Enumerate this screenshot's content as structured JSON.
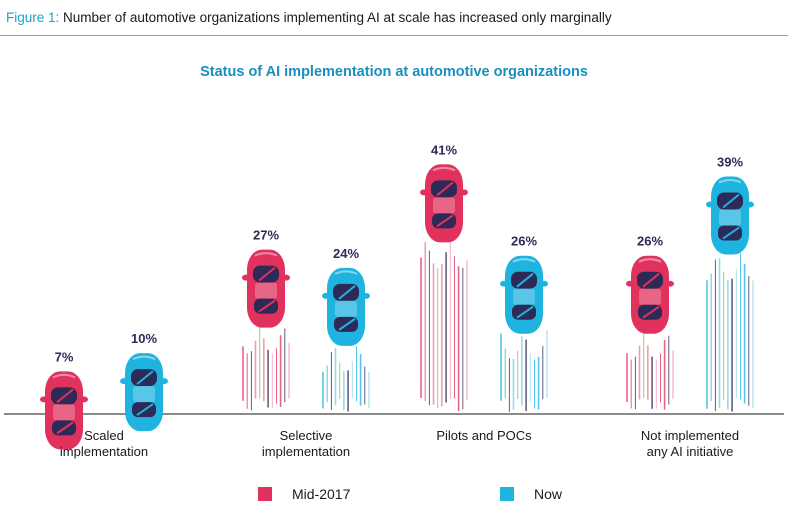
{
  "header": {
    "figure_label": "Figure 1:",
    "figure_title": "Number of automotive organizations implementing AI at scale has increased only marginally"
  },
  "chart_data": {
    "type": "bar",
    "title": "Status of AI implementation at automotive organizations",
    "categories": [
      [
        "Scaled",
        "implementation"
      ],
      [
        "Selective",
        "implementation"
      ],
      [
        "Pilots and POCs"
      ],
      [
        "Not implemented",
        "any AI initiative"
      ]
    ],
    "series": [
      {
        "name": "Mid-2017",
        "values": [
          7,
          27,
          41,
          26
        ],
        "color": "#e0325c"
      },
      {
        "name": "Now",
        "values": [
          10,
          24,
          26,
          39
        ],
        "color": "#1fb3e0"
      }
    ],
    "value_suffix": "%",
    "ylim": [
      0,
      45
    ],
    "legend": "bottom",
    "grid": false
  },
  "colors": {
    "accent": "#1fa0c8",
    "rule": "#7ac143",
    "label_text": "#2e2a57",
    "car_stripe": "#2e2a57"
  }
}
